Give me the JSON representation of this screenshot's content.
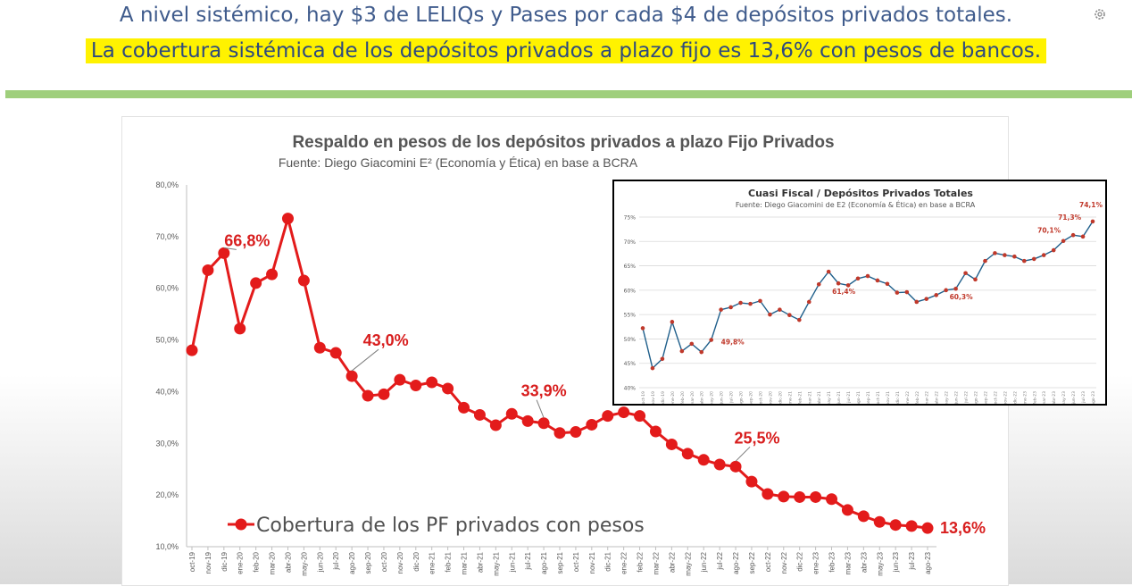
{
  "header": {
    "line1": "A nivel sistémico, hay $3 de LELIQs y Pases por cada $4 de depósitos privados totales.",
    "line2": "La cobertura sistémica de los depósitos privados a plazo fijo es 13,6% con pesos de bancos.",
    "icon": "settings-gear-icon",
    "highlight_color": "#fff200",
    "rule_color": "#9fcf7c"
  },
  "chart_data": [
    {
      "type": "line",
      "title": "Respaldo en pesos de los depósitos privados a plazo Fijo Privados",
      "subtitle": "Fuente: Diego Giacomini E² (Economía y Ética) en base a BCRA",
      "xlabel": "",
      "ylabel": "",
      "ylim": [
        10,
        80
      ],
      "yticks": [
        "10,0%",
        "20,0%",
        "30,0%",
        "40,0%",
        "50,0%",
        "60,0%",
        "70,0%",
        "80,0%"
      ],
      "grid": false,
      "legend": "bottom-left",
      "categories": [
        "oct-19",
        "nov-19",
        "dic-19",
        "ene-20",
        "feb-20",
        "mar-20",
        "abr-20",
        "may-20",
        "jun-20",
        "jul-20",
        "ago-20",
        "sep-20",
        "oct-20",
        "nov-20",
        "dic-20",
        "ene-21",
        "feb-21",
        "mar-21",
        "abr-21",
        "may-21",
        "jun-21",
        "jul-21",
        "ago-21",
        "sep-21",
        "oct-21",
        "nov-21",
        "dic-21",
        "ene-22",
        "feb-22",
        "mar-22",
        "abr-22",
        "may-22",
        "jun-22",
        "jul-22",
        "ago-22",
        "sep-22",
        "oct-22",
        "nov-22",
        "dic-22",
        "ene-23",
        "feb-23",
        "mar-23",
        "abr-23",
        "may-23",
        "jun-23",
        "jul-23",
        "ago-23"
      ],
      "series": [
        {
          "name": "Cobertura de los PF privados con pesos",
          "color": "#e31b1b",
          "values": [
            48.0,
            63.5,
            66.8,
            52.2,
            61.0,
            62.7,
            73.5,
            61.5,
            48.5,
            47.5,
            43.0,
            39.2,
            39.5,
            42.3,
            41.2,
            41.8,
            40.6,
            36.9,
            35.5,
            33.5,
            35.7,
            34.3,
            33.9,
            32.0,
            32.2,
            33.6,
            35.3,
            36.0,
            35.3,
            32.3,
            29.8,
            28.0,
            26.8,
            25.9,
            25.5,
            22.6,
            20.2,
            19.7,
            19.6,
            19.6,
            19.2,
            17.1,
            15.9,
            14.8,
            14.2,
            14.0,
            13.6
          ]
        }
      ],
      "annotations": [
        {
          "index": 2,
          "label": "66,8%"
        },
        {
          "index": 10,
          "label": "43,0%"
        },
        {
          "index": 22,
          "label": "33,9%"
        },
        {
          "index": 34,
          "label": "25,5%"
        },
        {
          "index": 46,
          "label": "13,6%"
        }
      ]
    },
    {
      "type": "line",
      "title": "Cuasi Fiscal / Depósitos Privados Totales",
      "subtitle": "Fuente: Diego Giacomini de E2 (Economía & Ética) en base a BCRA",
      "xlabel": "",
      "ylabel": "",
      "ylim": [
        40,
        75
      ],
      "yticks": [
        "40%",
        "45%",
        "50%",
        "55%",
        "60%",
        "65%",
        "70%",
        "75%"
      ],
      "grid": true,
      "series": [
        {
          "color": "#1f5f8b",
          "marker_color": "#c0392b",
          "values": [
            52.2,
            44.0,
            45.9,
            53.5,
            47.5,
            49.0,
            47.3,
            49.8,
            56.0,
            56.5,
            57.4,
            57.2,
            57.8,
            55.0,
            56.0,
            54.9,
            53.9,
            57.6,
            61.2,
            63.8,
            61.4,
            61.0,
            62.4,
            62.9,
            62.0,
            61.3,
            59.5,
            59.6,
            57.6,
            58.2,
            59.0,
            60.0,
            60.3,
            63.5,
            62.2,
            66.0,
            67.6,
            67.2,
            66.9,
            66.0,
            66.4,
            67.2,
            68.2,
            70.1,
            71.3,
            71.0,
            74.1
          ]
        }
      ],
      "annotations": [
        {
          "index": 7,
          "label": "49,8%"
        },
        {
          "index": 20,
          "label": "61,4%"
        },
        {
          "index": 32,
          "label": "60,3%"
        },
        {
          "index": 43,
          "label": "70,1%"
        },
        {
          "index": 44,
          "label": "71,3%"
        },
        {
          "index": 46,
          "label": "74,1%"
        }
      ]
    }
  ]
}
